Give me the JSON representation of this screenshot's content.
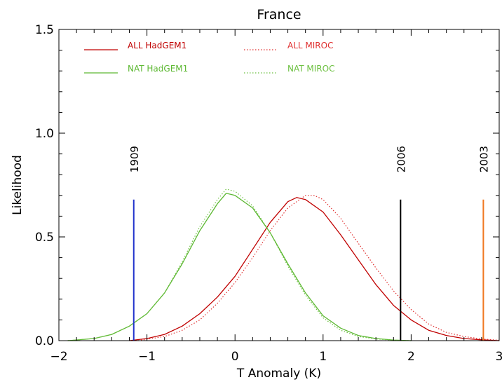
{
  "chart_data": {
    "type": "line",
    "title": "France",
    "xlabel": "T Anomaly (K)",
    "ylabel": "Likelihood",
    "xlim": [
      -2,
      3
    ],
    "ylim": [
      0,
      1.5
    ],
    "x_ticks": [
      -2,
      -1,
      0,
      1,
      2,
      3
    ],
    "x_tick_labels": [
      "−2",
      "−1",
      "0",
      "1",
      "2",
      "3"
    ],
    "y_ticks": [
      0,
      0.5,
      1.0,
      1.5
    ],
    "y_tick_labels": [
      "0.0",
      "0.5",
      "1.0",
      "1.5"
    ],
    "grid": false,
    "legend_position": "top-left",
    "series": [
      {
        "name": "ALL HadGEM1",
        "color": "#c00000",
        "dash": "solid",
        "x": [
          -1.2,
          -1.0,
          -0.8,
          -0.6,
          -0.4,
          -0.2,
          0.0,
          0.2,
          0.4,
          0.6,
          0.7,
          0.8,
          1.0,
          1.2,
          1.4,
          1.6,
          1.8,
          2.0,
          2.2,
          2.4,
          2.6,
          2.8,
          3.0
        ],
        "y": [
          0.0,
          0.01,
          0.03,
          0.07,
          0.13,
          0.21,
          0.31,
          0.44,
          0.57,
          0.67,
          0.69,
          0.68,
          0.62,
          0.51,
          0.39,
          0.27,
          0.17,
          0.1,
          0.05,
          0.025,
          0.01,
          0.004,
          0.0
        ]
      },
      {
        "name": "ALL MIROC",
        "color": "#e03030",
        "dash": "dotted",
        "x": [
          -1.1,
          -0.8,
          -0.6,
          -0.4,
          -0.2,
          0.0,
          0.2,
          0.4,
          0.6,
          0.8,
          0.9,
          1.0,
          1.2,
          1.4,
          1.6,
          1.8,
          2.0,
          2.2,
          2.4,
          2.6,
          2.8,
          3.0
        ],
        "y": [
          0.0,
          0.02,
          0.05,
          0.1,
          0.18,
          0.28,
          0.4,
          0.53,
          0.64,
          0.7,
          0.7,
          0.68,
          0.59,
          0.47,
          0.35,
          0.24,
          0.15,
          0.08,
          0.04,
          0.02,
          0.008,
          0.002
        ]
      },
      {
        "name": "NAT HadGEM1",
        "color": "#5cb832",
        "dash": "solid",
        "x": [
          -1.9,
          -1.6,
          -1.4,
          -1.2,
          -1.0,
          -0.8,
          -0.6,
          -0.4,
          -0.2,
          -0.1,
          0.0,
          0.2,
          0.4,
          0.6,
          0.8,
          1.0,
          1.2,
          1.4,
          1.6,
          1.8,
          2.0
        ],
        "y": [
          0.0,
          0.01,
          0.03,
          0.07,
          0.13,
          0.23,
          0.37,
          0.53,
          0.66,
          0.71,
          0.7,
          0.64,
          0.52,
          0.37,
          0.23,
          0.12,
          0.06,
          0.025,
          0.01,
          0.003,
          0.0
        ]
      },
      {
        "name": "NAT MIROC",
        "color": "#6cc040",
        "dash": "dotted",
        "x": [
          -1.9,
          -1.6,
          -1.4,
          -1.2,
          -1.0,
          -0.8,
          -0.6,
          -0.4,
          -0.2,
          -0.1,
          0.0,
          0.2,
          0.4,
          0.6,
          0.8,
          1.0,
          1.2,
          1.4,
          1.6,
          1.8,
          2.0
        ],
        "y": [
          0.0,
          0.01,
          0.03,
          0.07,
          0.13,
          0.23,
          0.38,
          0.55,
          0.68,
          0.73,
          0.72,
          0.65,
          0.52,
          0.36,
          0.22,
          0.11,
          0.05,
          0.02,
          0.008,
          0.002,
          0.0
        ]
      }
    ],
    "markers": [
      {
        "label": "1909",
        "x": -1.15,
        "height": 0.68,
        "color": "#2233cc"
      },
      {
        "label": "2006",
        "x": 1.88,
        "height": 0.68,
        "color": "#000000"
      },
      {
        "label": "2003",
        "x": 2.82,
        "height": 0.68,
        "color": "#f07820"
      }
    ]
  }
}
